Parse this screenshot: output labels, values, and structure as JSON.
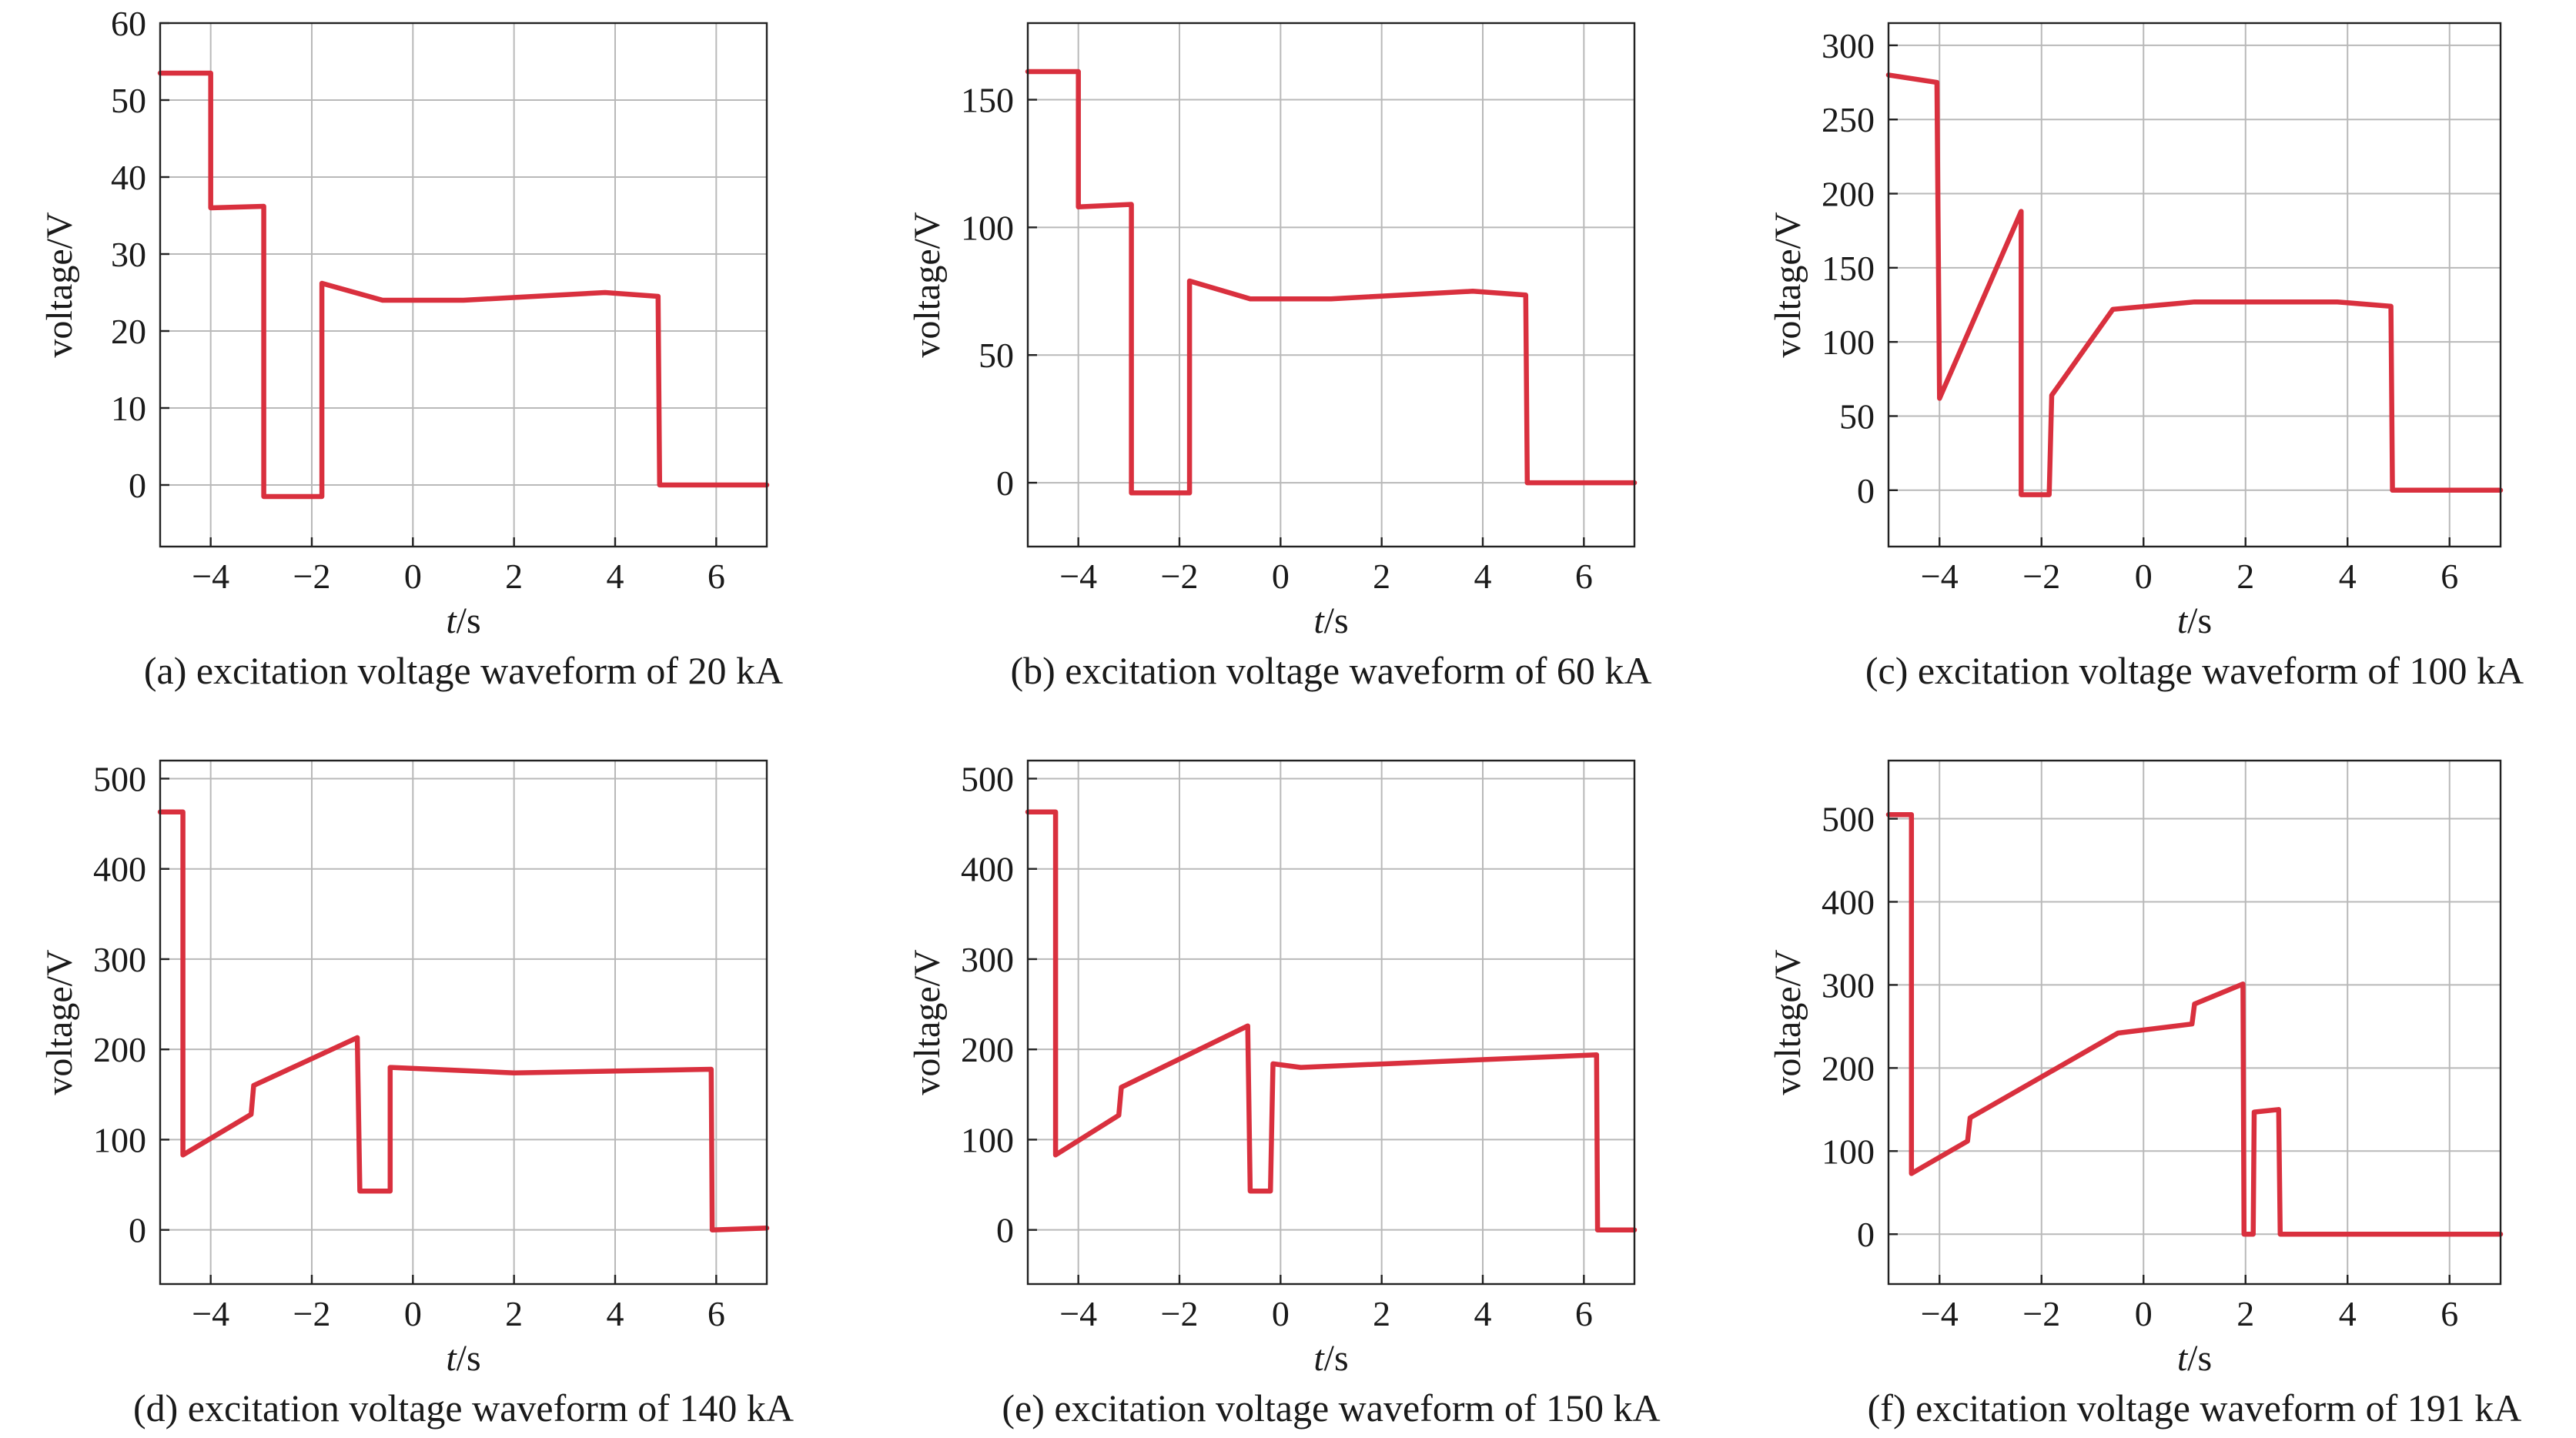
{
  "page": {
    "background": "#ffffff",
    "series_color": "#d9303e"
  },
  "chart_data": [
    {
      "type": "line",
      "caption": "(a) excitation voltage waveform of 20 kA",
      "xlabel_var": "t",
      "xlabel_unit": "/s",
      "ylabel": "voltage/V",
      "xlim": [
        -5,
        7
      ],
      "ylim": [
        -8,
        60
      ],
      "xticks": [
        -4,
        -2,
        0,
        2,
        4,
        6
      ],
      "xtick_labels": [
        "−4",
        "−2",
        "0",
        "2",
        "4",
        "6"
      ],
      "yticks": [
        0,
        10,
        20,
        30,
        40,
        50,
        60
      ],
      "ytick_labels": [
        "0",
        "10",
        "20",
        "30",
        "40",
        "50",
        "60"
      ],
      "grid": true,
      "series": [
        {
          "x": [
            -5,
            -4.0,
            -4.0,
            -2.95,
            -2.95,
            -1.8,
            -1.8,
            -0.6,
            1.0,
            3.8,
            4.85,
            4.88,
            7.0
          ],
          "y": [
            53.5,
            53.5,
            36,
            36.2,
            -1.5,
            -1.5,
            26.2,
            24,
            24,
            25,
            24.5,
            0,
            0
          ]
        }
      ]
    },
    {
      "type": "line",
      "caption": "(b) excitation voltage waveform of 60 kA",
      "xlabel_var": "t",
      "xlabel_unit": "/s",
      "ylabel": "voltage/V",
      "xlim": [
        -5,
        7
      ],
      "ylim": [
        -25,
        180
      ],
      "xticks": [
        -4,
        -2,
        0,
        2,
        4,
        6
      ],
      "xtick_labels": [
        "−4",
        "−2",
        "0",
        "2",
        "4",
        "6"
      ],
      "yticks": [
        0,
        50,
        100,
        150
      ],
      "ytick_labels": [
        "0",
        "50",
        "100",
        "150"
      ],
      "grid": true,
      "series": [
        {
          "x": [
            -5,
            -4.0,
            -4.0,
            -2.95,
            -2.95,
            -1.8,
            -1.8,
            -0.6,
            1.0,
            3.8,
            4.85,
            4.88,
            7.0
          ],
          "y": [
            161,
            161,
            108,
            109,
            -4,
            -4,
            79,
            72,
            72,
            75,
            73.5,
            0,
            0
          ]
        }
      ]
    },
    {
      "type": "line",
      "caption": "(c) excitation voltage waveform of 100 kA",
      "xlabel_var": "t",
      "xlabel_unit": "/s",
      "ylabel": "voltage/V",
      "xlim": [
        -5,
        7
      ],
      "ylim": [
        -38,
        315
      ],
      "xticks": [
        -4,
        -2,
        0,
        2,
        4,
        6
      ],
      "xtick_labels": [
        "−4",
        "−2",
        "0",
        "2",
        "4",
        "6"
      ],
      "yticks": [
        0,
        50,
        100,
        150,
        200,
        250,
        300
      ],
      "ytick_labels": [
        "0",
        "50",
        "100",
        "150",
        "200",
        "250",
        "300"
      ],
      "grid": true,
      "series": [
        {
          "x": [
            -5,
            -4.05,
            -4.0,
            -2.4,
            -2.4,
            -1.85,
            -1.8,
            -0.6,
            1.0,
            3.8,
            4.85,
            4.88,
            7.0
          ],
          "y": [
            280,
            275,
            62,
            188,
            -3,
            -3,
            64,
            122,
            127,
            127,
            124,
            0,
            0
          ]
        }
      ]
    },
    {
      "type": "line",
      "caption": "(d) excitation voltage waveform of 140 kA",
      "xlabel_var": "t",
      "xlabel_unit": "/s",
      "ylabel": "voltage/V",
      "xlim": [
        -5,
        7
      ],
      "ylim": [
        -60,
        520
      ],
      "xticks": [
        -4,
        -2,
        0,
        2,
        4,
        6
      ],
      "xtick_labels": [
        "−4",
        "−2",
        "0",
        "2",
        "4",
        "6"
      ],
      "yticks": [
        0,
        100,
        200,
        300,
        400,
        500
      ],
      "ytick_labels": [
        "0",
        "100",
        "200",
        "300",
        "400",
        "500"
      ],
      "grid": true,
      "series": [
        {
          "x": [
            -5,
            -4.55,
            -4.55,
            -3.2,
            -3.15,
            -1.1,
            -1.05,
            -0.45,
            -0.45,
            2.0,
            5.9,
            5.92,
            7.0
          ],
          "y": [
            463,
            463,
            83,
            128,
            160,
            213,
            43,
            43,
            180,
            174,
            178,
            0,
            2
          ]
        }
      ]
    },
    {
      "type": "line",
      "caption": "(e) excitation voltage waveform of 150 kA",
      "xlabel_var": "t",
      "xlabel_unit": "/s",
      "ylabel": "voltage/V",
      "xlim": [
        -5,
        7
      ],
      "ylim": [
        -60,
        520
      ],
      "xticks": [
        -4,
        -2,
        0,
        2,
        4,
        6
      ],
      "xtick_labels": [
        "−4",
        "−2",
        "0",
        "2",
        "4",
        "6"
      ],
      "yticks": [
        0,
        100,
        200,
        300,
        400,
        500
      ],
      "ytick_labels": [
        "0",
        "100",
        "200",
        "300",
        "400",
        "500"
      ],
      "grid": true,
      "series": [
        {
          "x": [
            -5,
            -4.45,
            -4.45,
            -3.2,
            -3.15,
            -0.65,
            -0.6,
            -0.2,
            -0.15,
            0.4,
            6.25,
            6.27,
            7.0
          ],
          "y": [
            463,
            463,
            83,
            127,
            158,
            226,
            43,
            43,
            184,
            180,
            194,
            0,
            0
          ]
        }
      ]
    },
    {
      "type": "line",
      "caption": "(f) excitation voltage waveform of 191 kA",
      "xlabel_var": "t",
      "xlabel_unit": "/s",
      "ylabel": "voltage/V",
      "xlim": [
        -5,
        7
      ],
      "ylim": [
        -60,
        570
      ],
      "xticks": [
        -4,
        -2,
        0,
        2,
        4,
        6
      ],
      "xtick_labels": [
        "−4",
        "−2",
        "0",
        "2",
        "4",
        "6"
      ],
      "yticks": [
        0,
        100,
        200,
        300,
        400,
        500
      ],
      "ytick_labels": [
        "0",
        "100",
        "200",
        "300",
        "400",
        "500"
      ],
      "grid": true,
      "series": [
        {
          "x": [
            -5,
            -4.55,
            -4.55,
            -3.45,
            -3.4,
            -0.5,
            0.95,
            1.0,
            1.95,
            1.97,
            2.15,
            2.17,
            2.65,
            2.68,
            7.0
          ],
          "y": [
            505,
            505,
            73,
            112,
            140,
            242,
            253,
            277,
            301,
            0,
            0,
            147,
            150,
            0,
            0
          ]
        }
      ]
    }
  ]
}
